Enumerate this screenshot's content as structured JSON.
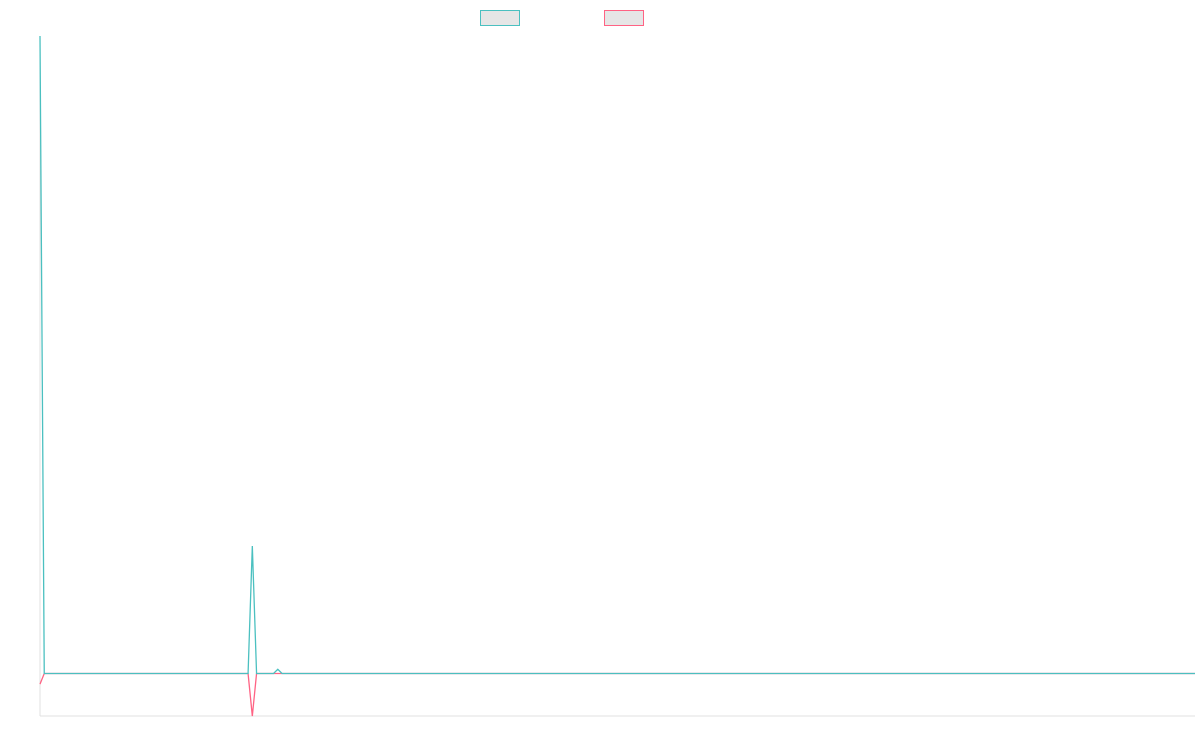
{
  "chart_data": {
    "type": "line",
    "title": "",
    "xlabel": "",
    "ylabel": "",
    "legend_position": "top",
    "grid": false,
    "x": [
      0,
      1,
      2,
      3,
      4,
      5,
      6,
      7,
      8,
      9,
      10,
      11,
      12,
      13,
      14,
      15,
      16,
      17,
      18,
      19,
      20,
      21,
      22,
      23,
      24,
      25,
      26,
      27,
      28,
      29,
      30,
      31,
      32,
      33,
      34,
      35,
      36,
      37,
      38,
      39,
      40,
      41,
      42,
      43,
      44,
      45,
      46,
      47,
      48,
      49,
      50,
      51,
      52,
      53,
      54,
      55,
      56,
      57,
      58,
      59,
      60,
      61,
      62,
      63,
      64,
      65,
      66,
      67,
      68,
      69,
      70,
      71,
      72,
      73,
      74,
      75,
      76,
      77,
      78,
      79,
      80,
      81,
      82,
      83,
      84,
      85,
      86,
      87,
      88,
      89,
      90,
      91,
      92,
      93,
      94,
      95,
      96,
      97,
      98,
      99,
      100,
      101,
      102,
      103,
      104,
      105,
      106,
      107,
      108,
      109,
      110,
      111,
      112,
      113,
      114,
      115,
      116,
      117,
      118,
      119,
      120,
      121,
      122,
      123,
      124,
      125,
      126,
      127,
      128,
      129,
      130,
      131,
      132,
      133,
      134,
      135,
      136,
      137,
      138,
      139,
      140,
      141,
      142,
      143,
      144,
      145,
      146,
      147,
      148,
      149,
      150,
      151,
      152,
      153,
      154,
      155,
      156,
      157,
      158,
      159,
      160,
      161,
      162,
      163,
      164,
      165,
      166,
      167,
      168,
      169,
      170,
      171,
      172,
      173,
      174,
      175,
      176,
      177,
      178,
      179,
      180,
      181,
      182,
      183,
      184,
      185,
      186,
      187,
      188,
      189,
      190,
      191,
      192,
      193,
      194,
      195,
      196,
      197,
      198,
      199,
      200,
      201,
      202,
      203,
      204,
      205,
      206,
      207,
      208,
      209,
      210,
      211,
      212,
      213,
      214,
      215,
      216,
      217,
      218,
      219,
      220,
      221,
      222,
      223,
      224,
      225,
      226,
      227,
      228,
      229,
      230,
      231,
      232,
      233,
      234,
      235,
      236,
      237,
      238,
      239,
      240,
      241,
      242,
      243,
      244,
      245,
      246,
      247,
      248,
      249,
      250,
      251,
      252,
      253,
      254,
      255,
      256,
      257,
      258,
      259,
      260,
      261,
      262,
      263,
      264,
      265,
      266,
      267,
      268,
      269,
      270,
      271,
      272
    ],
    "ylim": [
      -10,
      150
    ],
    "series": [
      {
        "name": "",
        "color": "#4bc0c0",
        "values": [
          150,
          0,
          0,
          0,
          0,
          0,
          0,
          0,
          0,
          0,
          0,
          0,
          0,
          0,
          0,
          0,
          0,
          0,
          0,
          0,
          0,
          0,
          0,
          0,
          0,
          0,
          0,
          0,
          0,
          0,
          0,
          0,
          0,
          0,
          0,
          0,
          0,
          0,
          0,
          0,
          0,
          0,
          0,
          0,
          0,
          0,
          0,
          0,
          0,
          0,
          30,
          0,
          0,
          0,
          0,
          0,
          1,
          0,
          0,
          0,
          0,
          0,
          0,
          0,
          0,
          0,
          0,
          0,
          0,
          0,
          0,
          0,
          0,
          0,
          0,
          0,
          0,
          0,
          0,
          0,
          0,
          0,
          0,
          0,
          0,
          0,
          0,
          0,
          0,
          0,
          0,
          0,
          0,
          0,
          0,
          0,
          0,
          0,
          0,
          0,
          0,
          0,
          0,
          0,
          0,
          0,
          0,
          0,
          0,
          0,
          0,
          0,
          0,
          0,
          0,
          0,
          0,
          0,
          0,
          0,
          0,
          0,
          0,
          0,
          0,
          0,
          0,
          0,
          0,
          0,
          0,
          0,
          0,
          0,
          0,
          0,
          0,
          0,
          0,
          0,
          0,
          0,
          0,
          0,
          0,
          0,
          0,
          0,
          0,
          0,
          0,
          0,
          0,
          0,
          0,
          0,
          0,
          0,
          0,
          0,
          0,
          0,
          0,
          0,
          0,
          0,
          0,
          0,
          0,
          0,
          0,
          0,
          0,
          0,
          0,
          0,
          0,
          0,
          0,
          0,
          0,
          0,
          0,
          0,
          0,
          0,
          0,
          0,
          0,
          0,
          0,
          0,
          0,
          0,
          0,
          0,
          0,
          0,
          0,
          0,
          0,
          0,
          0,
          0,
          0,
          0,
          0,
          0,
          0,
          0,
          0,
          0,
          0,
          0,
          0,
          0,
          0,
          0,
          0,
          0,
          0,
          0,
          0,
          0,
          0,
          0,
          0,
          0,
          0,
          0,
          0,
          0,
          0,
          0,
          0,
          0,
          0,
          0,
          0,
          0,
          0,
          0,
          0,
          0,
          0,
          0,
          0,
          0,
          0,
          0,
          0,
          0,
          0,
          0,
          0,
          0,
          0,
          0,
          0,
          0,
          0,
          0,
          0,
          0,
          0,
          0,
          0,
          0,
          0,
          0,
          0,
          0,
          0
        ]
      },
      {
        "name": "",
        "color": "#ff6384",
        "values": [
          -2.5,
          0,
          0,
          0,
          0,
          0,
          0,
          0,
          0,
          0,
          0,
          0,
          0,
          0,
          0,
          0,
          0,
          0,
          0,
          0,
          0,
          0,
          0,
          0,
          0,
          0,
          0,
          0,
          0,
          0,
          0,
          0,
          0,
          0,
          0,
          0,
          0,
          0,
          0,
          0,
          0,
          0,
          0,
          0,
          0,
          0,
          0,
          0,
          0,
          0,
          -10,
          0,
          0,
          0,
          0,
          0,
          0,
          0,
          0,
          0,
          0,
          0,
          0,
          0,
          0,
          0,
          0,
          0,
          0,
          0,
          0,
          0,
          0,
          0,
          0,
          0,
          0,
          0,
          0,
          0,
          0,
          0,
          0,
          0,
          0,
          0,
          0,
          0,
          0,
          0,
          0,
          0,
          0,
          0,
          0,
          0,
          0,
          0,
          0,
          0,
          0,
          0,
          0,
          0,
          0,
          0,
          0,
          0,
          0,
          0,
          0,
          0,
          0,
          0,
          0,
          0,
          0,
          0,
          0,
          0,
          0,
          0,
          0,
          0,
          0,
          0,
          0,
          0,
          0,
          0,
          0,
          0,
          0,
          0,
          0,
          0,
          0,
          0,
          0,
          0,
          0,
          0,
          0,
          0,
          0,
          0,
          0,
          0,
          0,
          0,
          0,
          0,
          0,
          0,
          0,
          0,
          0,
          0,
          0,
          0,
          0,
          0,
          0,
          0,
          0,
          0,
          0,
          0,
          0,
          0,
          0,
          0,
          0,
          0,
          0,
          0,
          0,
          0,
          0,
          0,
          0,
          0,
          0,
          0,
          0,
          0,
          0,
          0,
          0,
          0,
          0,
          0,
          0,
          0,
          0,
          0,
          0,
          0,
          0,
          0,
          0,
          0,
          0,
          0,
          0,
          0,
          0,
          0,
          0,
          0,
          0,
          0,
          0,
          0,
          0,
          0,
          0,
          0,
          0,
          0,
          0,
          0,
          0,
          0,
          0,
          0,
          0,
          0,
          0,
          0,
          0,
          0,
          0,
          0,
          0,
          0,
          0,
          0,
          0,
          0,
          0,
          0,
          0,
          0,
          0,
          0,
          0,
          0,
          0,
          0,
          0,
          0,
          0,
          0,
          0,
          0,
          0,
          0,
          0,
          0,
          0,
          0,
          0,
          0,
          0,
          0,
          0,
          0,
          0,
          0,
          0,
          0,
          0
        ]
      }
    ]
  }
}
